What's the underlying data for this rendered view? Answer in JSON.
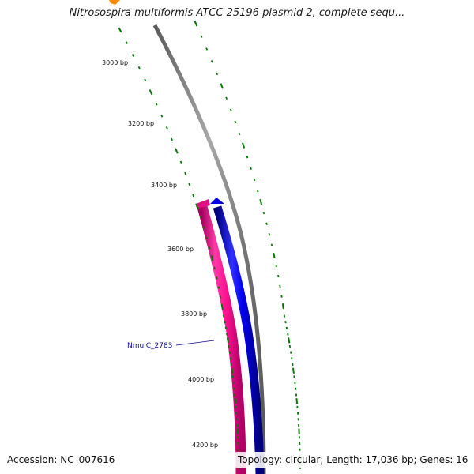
{
  "title": "Nitrosospira multiformis ATCC 25196 plasmid 2, complete sequ...",
  "footer": {
    "accession": "Accession: NC_007616",
    "summary": "Topology: circular; Length: 17,036 bp; Genes: 16"
  },
  "chart_data": {
    "type": "circular-genome-map",
    "topology": "circular",
    "length_bp": 17036,
    "gene_count": 16,
    "tick_labels": [
      "3000 bp",
      "3200 bp",
      "3400 bp",
      "3600 bp",
      "3800 bp",
      "4000 bp",
      "4200 bp"
    ],
    "features": [
      {
        "label": "NmulC_2783",
        "strand": "minus",
        "color": "#ff1493"
      },
      {
        "label": "",
        "strand": "plus",
        "color": "#0000ff"
      }
    ],
    "colors": {
      "backbone": "#808080",
      "ticks": "#007700",
      "orf_marker": "#ff8c00"
    }
  }
}
